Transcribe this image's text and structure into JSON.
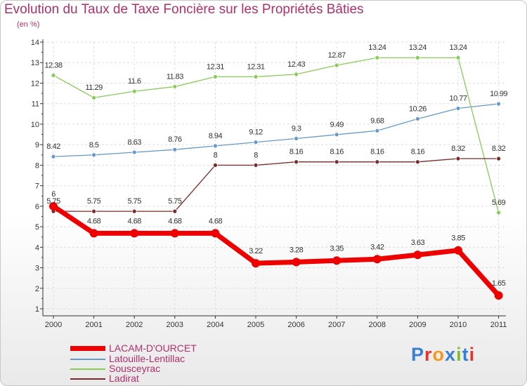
{
  "title": "Evolution du Taux de Taxe Foncière sur les Propriétés Bâties",
  "subtitle": "(en %)",
  "logo": {
    "text": "Proxiti",
    "colors": [
      "#3a7fd6",
      "#e4332b",
      "#f29a1d",
      "#3a7fd6",
      "#7fbf2a",
      "#3a7fd6",
      "#e4332b"
    ]
  },
  "chart_data": {
    "type": "line",
    "x": [
      "2000",
      "2001",
      "2002",
      "2003",
      "2004",
      "2005",
      "2006",
      "2007",
      "2008",
      "2009",
      "2010",
      "2011"
    ],
    "ylim": [
      1,
      14
    ],
    "yticks": [
      "1",
      "2",
      "3",
      "4",
      "5",
      "6",
      "7",
      "8",
      "9",
      "10",
      "11",
      "12",
      "13",
      "14"
    ],
    "grid": true,
    "series": [
      {
        "name": "LACAM-D'OURCET",
        "color": "#ee0000",
        "values": [
          6,
          4.68,
          4.68,
          4.68,
          4.68,
          3.22,
          3.28,
          3.35,
          3.42,
          3.63,
          3.85,
          1.65
        ],
        "labels": [
          "6",
          "4.68",
          "4.68",
          "4.68",
          "4.68",
          "3.22",
          "3.28",
          "3.35",
          "3.42",
          "3.63",
          "3.85",
          "1.65"
        ]
      },
      {
        "name": "Latouille-Lentillac",
        "color": "#6699cc",
        "values": [
          8.42,
          8.5,
          8.63,
          8.76,
          8.94,
          9.12,
          9.3,
          9.49,
          9.68,
          10.26,
          10.77,
          10.99
        ],
        "labels": [
          "8.42",
          "8.5",
          "8.63",
          "8.76",
          "8.94",
          "9.12",
          "9.3",
          "9.49",
          "9.68",
          "10.26",
          "10.77",
          "10.99"
        ]
      },
      {
        "name": "Sousceyrac",
        "color": "#88cc55",
        "values": [
          12.38,
          11.29,
          11.6,
          11.83,
          12.31,
          12.31,
          12.43,
          12.87,
          13.24,
          13.24,
          13.24,
          5.69
        ],
        "labels": [
          "12.38",
          "11.29",
          "11.6",
          "11.83",
          "12.31",
          "12.31",
          "12.43",
          "12.87",
          "13.24",
          "13.24",
          "13.24",
          "5.69"
        ]
      },
      {
        "name": "Ladirat",
        "color": "#7a2a2a",
        "values": [
          5.75,
          5.75,
          5.75,
          5.75,
          8,
          8,
          8.16,
          8.16,
          8.16,
          8.16,
          8.32,
          8.32
        ],
        "labels": [
          "5.75",
          "5.75",
          "5.75",
          "5.75",
          "8",
          "8",
          "8.16",
          "8.16",
          "8.16",
          "8.16",
          "8.32",
          "8.32"
        ]
      }
    ]
  }
}
